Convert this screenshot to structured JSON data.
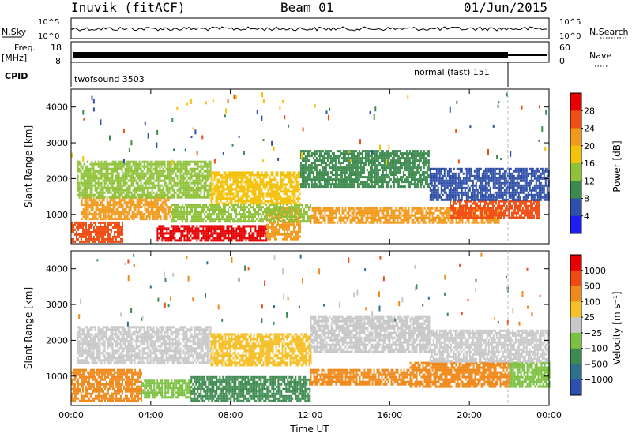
{
  "header": {
    "station": "Inuvik (fitACF)",
    "beam": "Beam 01",
    "date": "01/Jun/2015"
  },
  "top_panels": {
    "nsky_label": "N.Sky",
    "nsearch_label": "N.Search",
    "noise_ticks_left": [
      "10^5",
      "10^0"
    ],
    "noise_ticks_right": [
      "10^5",
      "10^0"
    ],
    "freq_label_line1": "Freq.",
    "freq_label_line2": "[MHz]",
    "freq_ticks": [
      "18",
      "8"
    ],
    "nave_label": "Nave",
    "nave_ticks": [
      "60",
      "0"
    ],
    "cpid_label": "CPID",
    "cpid_left": "twofsound 3503",
    "cpid_right": "normal (fast) 151"
  },
  "chart_data": [
    {
      "type": "heatmap",
      "title": "",
      "xlabel": "Time UT",
      "ylabel": "Slant Range [km]",
      "x_ticks": [
        "00:00",
        "04:00",
        "08:00",
        "12:00",
        "16:00",
        "20:00",
        "00:00"
      ],
      "x_range_hours": [
        0,
        24
      ],
      "ylim": [
        180,
        4500
      ],
      "y_ticks": [
        1000,
        2000,
        3000,
        4000
      ],
      "colorbar_label": "Power [dB]",
      "colorbar_ticks": [
        4,
        8,
        12,
        16,
        20,
        24,
        28
      ],
      "colorbar_colors": [
        "#1e1ef0",
        "#2f4fa8",
        "#3d8a4e",
        "#8fc23a",
        "#f4c20d",
        "#f29a1c",
        "#f04e14",
        "#e60000"
      ],
      "bands": [
        {
          "t0": 0.0,
          "t1": 2.6,
          "r0": 250,
          "r1": 800,
          "value": 24
        },
        {
          "t0": 4.3,
          "t1": 9.8,
          "r0": 260,
          "r1": 700,
          "value": 28
        },
        {
          "t0": 9.8,
          "t1": 11.5,
          "r0": 300,
          "r1": 1200,
          "value": 22
        },
        {
          "t0": 0.5,
          "t1": 5.0,
          "r0": 900,
          "r1": 1500,
          "value": 20
        },
        {
          "t0": 5.0,
          "t1": 12.0,
          "r0": 800,
          "r1": 1300,
          "value": 14
        },
        {
          "t0": 12.0,
          "t1": 21.5,
          "r0": 800,
          "r1": 1200,
          "value": 20
        },
        {
          "t0": 19.0,
          "t1": 23.5,
          "r0": 900,
          "r1": 1400,
          "value": 24
        },
        {
          "t0": 0.3,
          "t1": 7.0,
          "r0": 1500,
          "r1": 2500,
          "value": 14
        },
        {
          "t0": 7.0,
          "t1": 11.5,
          "r0": 1300,
          "r1": 2200,
          "value": 18
        },
        {
          "t0": 11.5,
          "t1": 18.0,
          "r0": 1800,
          "r1": 2800,
          "value": 8
        },
        {
          "t0": 18.0,
          "t1": 24.0,
          "r0": 1400,
          "r1": 2300,
          "value": 6
        }
      ]
    },
    {
      "type": "heatmap",
      "title": "",
      "xlabel": "Time UT",
      "ylabel": "Slant Range [km]",
      "x_ticks": [
        "00:00",
        "04:00",
        "08:00",
        "12:00",
        "16:00",
        "20:00",
        "00:00"
      ],
      "x_range_hours": [
        0,
        24
      ],
      "ylim": [
        180,
        4500
      ],
      "y_ticks": [
        1000,
        2000,
        3000,
        4000
      ],
      "colorbar_label": "Velocity [m s⁻¹]",
      "colorbar_ticks": [
        "1000",
        "500",
        "100",
        "25",
        "−25",
        "−100",
        "−500",
        "−1000"
      ],
      "colorbar_colors": [
        "#2e4fb0",
        "#2f6f8e",
        "#3e8a50",
        "#7cc142",
        "#c8c8c8",
        "#f5c02a",
        "#f08a1c",
        "#ef4a14",
        "#e60000"
      ],
      "bands": [
        {
          "t0": 0.0,
          "t1": 3.5,
          "r0": 300,
          "r1": 1200,
          "value": -250
        },
        {
          "t0": 3.5,
          "t1": 6.0,
          "r0": 400,
          "r1": 900,
          "value": 50
        },
        {
          "t0": 6.0,
          "t1": 12.0,
          "r0": 300,
          "r1": 1000,
          "value": 200
        },
        {
          "t0": 12.0,
          "t1": 17.0,
          "r0": 800,
          "r1": 1200,
          "value": -150
        },
        {
          "t0": 17.0,
          "t1": 22.0,
          "r0": 700,
          "r1": 1400,
          "value": -150
        },
        {
          "t0": 22.0,
          "t1": 24.0,
          "r0": 700,
          "r1": 1400,
          "value": 50
        },
        {
          "t0": 0.3,
          "t1": 7.0,
          "r0": 1400,
          "r1": 2400,
          "value": 0
        },
        {
          "t0": 7.0,
          "t1": 12.0,
          "r0": 1300,
          "r1": 2200,
          "value": -40
        },
        {
          "t0": 12.0,
          "t1": 18.0,
          "r0": 1700,
          "r1": 2700,
          "value": 0
        },
        {
          "t0": 18.0,
          "t1": 24.0,
          "r0": 1400,
          "r1": 2300,
          "value": 0
        }
      ]
    }
  ]
}
